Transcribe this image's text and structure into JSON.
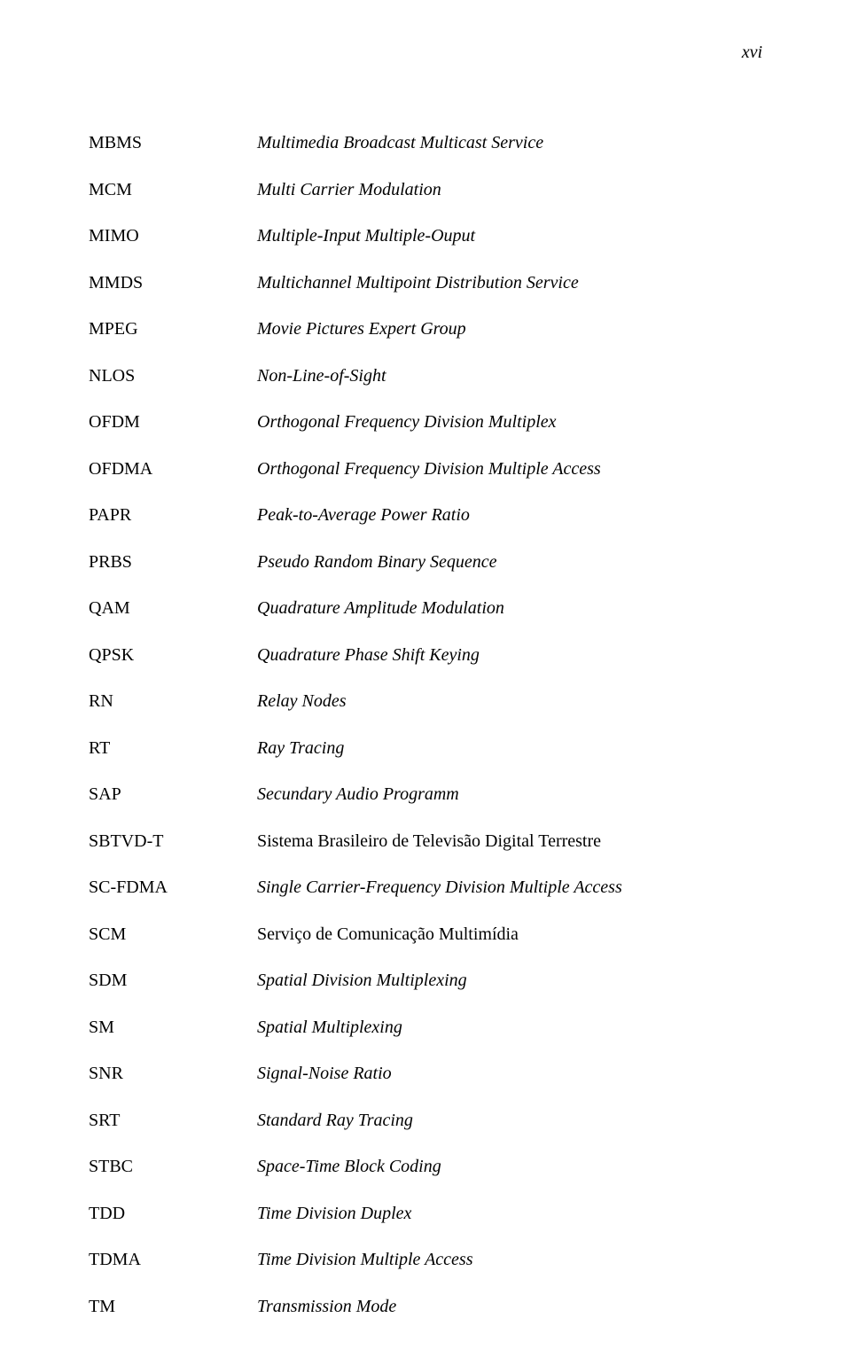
{
  "page_number": "xvi",
  "entries": [
    {
      "abbr": "MBMS",
      "def": "Multimedia Broadcast Multicast Service",
      "italic": true
    },
    {
      "abbr": "MCM",
      "def": "Multi Carrier Modulation",
      "italic": true
    },
    {
      "abbr": "MIMO",
      "def": "Multiple-Input Multiple-Ouput",
      "italic": true
    },
    {
      "abbr": "MMDS",
      "def": "Multichannel Multipoint Distribution Service",
      "italic": true
    },
    {
      "abbr": "MPEG",
      "def": "Movie Pictures Expert Group",
      "italic": true
    },
    {
      "abbr": "NLOS",
      "def": "Non-Line-of-Sight",
      "italic": true
    },
    {
      "abbr": "OFDM",
      "def": "Orthogonal Frequency Division Multiplex",
      "italic": true
    },
    {
      "abbr": "OFDMA",
      "def": "Orthogonal Frequency Division Multiple Access",
      "italic": true
    },
    {
      "abbr": "PAPR",
      "def": "Peak-to-Average Power Ratio",
      "italic": true
    },
    {
      "abbr": "PRBS",
      "def": "Pseudo Random Binary Sequence",
      "italic": true
    },
    {
      "abbr": "QAM",
      "def": "Quadrature Amplitude Modulation",
      "italic": true
    },
    {
      "abbr": "QPSK",
      "def": "Quadrature Phase Shift Keying",
      "italic": true
    },
    {
      "abbr": "RN",
      "def": "Relay Nodes",
      "italic": true
    },
    {
      "abbr": "RT",
      "def": "Ray Tracing",
      "italic": true
    },
    {
      "abbr": "SAP",
      "def": "Secundary Audio Programm",
      "italic": true
    },
    {
      "abbr": "SBTVD-T",
      "def": "Sistema Brasileiro de Televisão Digital Terrestre",
      "italic": false
    },
    {
      "abbr": "SC-FDMA",
      "def": "Single Carrier-Frequency Division Multiple Access",
      "italic": true
    },
    {
      "abbr": "SCM",
      "def": "Serviço de Comunicação Multimídia",
      "italic": false
    },
    {
      "abbr": "SDM",
      "def": "Spatial Division Multiplexing",
      "italic": true
    },
    {
      "abbr": "SM",
      "def": "Spatial Multiplexing",
      "italic": true
    },
    {
      "abbr": "SNR",
      "def": "Signal-Noise Ratio",
      "italic": true
    },
    {
      "abbr": "SRT",
      "def": "Standard Ray Tracing",
      "italic": true
    },
    {
      "abbr": "STBC",
      "def": "Space-Time Block Coding",
      "italic": true
    },
    {
      "abbr": "TDD",
      "def": "Time Division Duplex",
      "italic": true
    },
    {
      "abbr": "TDMA",
      "def": "Time Division Multiple Access",
      "italic": true
    },
    {
      "abbr": "TM",
      "def": "Transmission Mode",
      "italic": true
    }
  ]
}
